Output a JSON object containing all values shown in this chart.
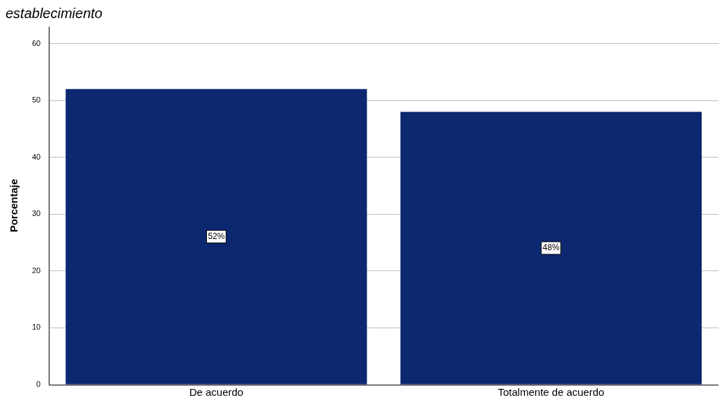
{
  "chart_data": {
    "type": "bar",
    "title": "establecimiento",
    "ylabel": "Porcentaje",
    "categories": [
      "De acuerdo",
      "Totalmente de acuerdo"
    ],
    "values": [
      52,
      48
    ],
    "color": "#0c2870",
    "value_labels": [
      "52%",
      "48%"
    ],
    "ylim": [
      0,
      63
    ],
    "yticks": [
      0,
      10,
      20,
      30,
      40,
      50,
      60
    ],
    "grid": "y"
  }
}
